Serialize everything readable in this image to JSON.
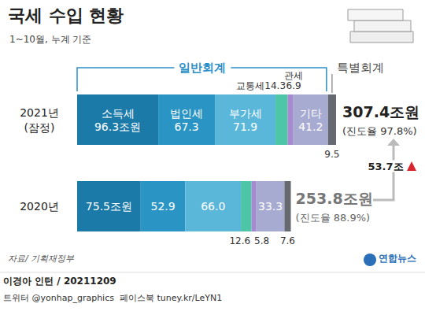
{
  "chart_data": {
    "type": "bar",
    "orientation": "horizontal",
    "stacked": true,
    "data_labels": true,
    "tick_labels": "y",
    "grid": false,
    "title": "국세 수입 현황",
    "subtitle": "1~10월, 누계 기준",
    "categories": [
      "2021년\n(잠정)",
      "2020년"
    ],
    "xlim": [
      0,
      307.4
    ],
    "series": [
      {
        "name": "소득세",
        "color": "#1b7aa8",
        "values": [
          96.3,
          75.5
        ],
        "value_labels": [
          "96.3조원",
          "75.5조원"
        ]
      },
      {
        "name": "법인세",
        "color": "#2a95c4",
        "values": [
          67.3,
          52.9
        ],
        "value_labels": [
          "67.3",
          "52.9"
        ]
      },
      {
        "name": "부가세",
        "color": "#5bb7da",
        "values": [
          71.9,
          66.0
        ],
        "value_labels": [
          "71.9",
          "66.0"
        ]
      },
      {
        "name": "교통세",
        "color": "#4cc6a6",
        "values": [
          14.3,
          12.6
        ],
        "value_labels": [
          "14.3",
          "12.6"
        ]
      },
      {
        "name": "관세",
        "color": "#a68ad0",
        "values": [
          6.9,
          5.8
        ],
        "value_labels": [
          "6.9",
          "5.8"
        ]
      },
      {
        "name": "기타",
        "color": "#a7abd2",
        "values": [
          41.2,
          33.3
        ],
        "value_labels": [
          "41.2",
          "33.3"
        ]
      },
      {
        "name": "특별회계",
        "color": "#666a70",
        "values": [
          9.5,
          7.6
        ],
        "value_labels": [
          "9.5",
          "7.6"
        ]
      }
    ],
    "annotations": {
      "general_account": "일반회계",
      "totals": [
        {
          "text": "307.4조원",
          "note": "(진도율 97.8%)"
        },
        {
          "text": "253.8조원",
          "note": "(진도율 88.9%)"
        }
      ],
      "difference": "53.7조",
      "source": "자료/ 기획재정부",
      "credit": "이경아 인턴 / 20211209",
      "social": "트위터 @yonhap_graphics  페이스북 tuney.kr/LeYN1",
      "logo": "연합뉴스"
    }
  }
}
